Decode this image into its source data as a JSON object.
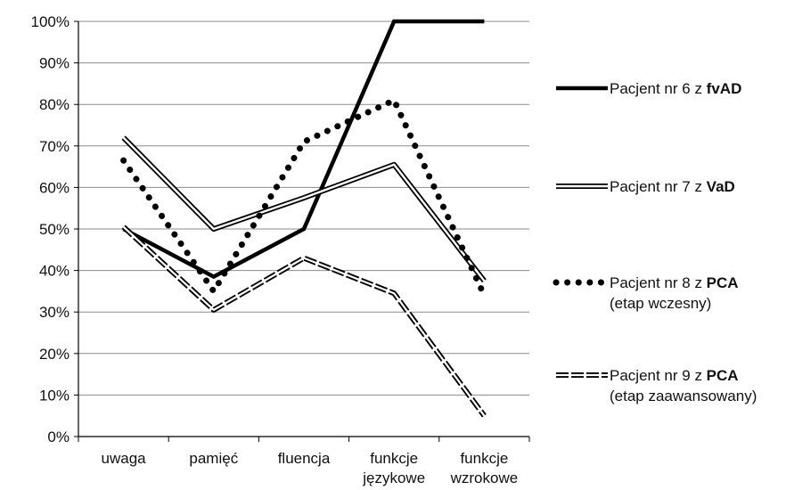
{
  "chart_data": {
    "type": "line",
    "categories": [
      [
        "uwaga"
      ],
      [
        "pamięć"
      ],
      [
        "fluencja"
      ],
      [
        "funkcje",
        "językowe"
      ],
      [
        "funkcje",
        "wzrokowe"
      ]
    ],
    "ylim": [
      0,
      100
    ],
    "y_ticks": [
      0,
      10,
      20,
      30,
      40,
      50,
      60,
      70,
      80,
      90,
      100
    ],
    "y_tick_suffix": "%",
    "grid": true,
    "legend_placement": "right",
    "series": [
      {
        "name_prefix": "Pacjent nr 6 z ",
        "name_bold": "fvAD",
        "name_line2": "",
        "style": "solid-thick",
        "color": "#000000",
        "values": [
          50,
          38.5,
          50,
          100,
          100
        ]
      },
      {
        "name_prefix": "Pacjent nr 7 z ",
        "name_bold": "VaD",
        "name_line2": "",
        "style": "double",
        "color": "#000000",
        "values": [
          72,
          50,
          57.5,
          65.5,
          37.5
        ]
      },
      {
        "name_prefix": "Pacjent nr 8 z ",
        "name_bold": "PCA",
        "name_line2": "(etap wczesny)",
        "style": "dotted",
        "color": "#000000",
        "values": [
          66.5,
          35,
          71,
          81,
          34
        ]
      },
      {
        "name_prefix": "Pacjent nr 9 z ",
        "name_bold": "PCA",
        "name_line2": "(etap zaawansowany)",
        "style": "double-dashed",
        "color": "#000000",
        "values": [
          50.5,
          30.5,
          43,
          34.5,
          5
        ]
      }
    ]
  }
}
